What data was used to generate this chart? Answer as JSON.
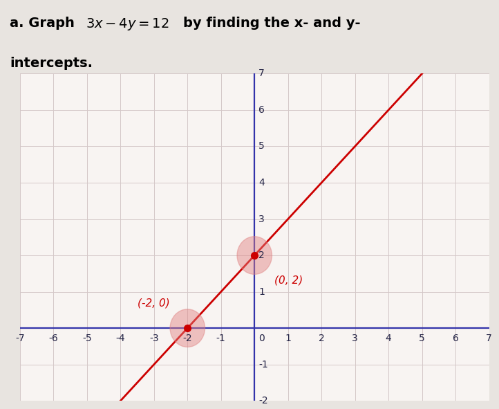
{
  "xlim": [
    -7,
    7
  ],
  "ylim": [
    -2,
    7
  ],
  "xticks": [
    -7,
    -6,
    -5,
    -4,
    -3,
    -2,
    -1,
    0,
    1,
    2,
    3,
    4,
    5,
    6,
    7
  ],
  "yticks": [
    -2,
    -1,
    1,
    2,
    3,
    4,
    5,
    6,
    7
  ],
  "point1": [
    -2,
    0
  ],
  "point2": [
    0,
    2
  ],
  "label1": "(-2, 0)",
  "label2": "(0, 2)",
  "line_color": "#cc0000",
  "point_color": "#cc0000",
  "halo_color": "#e08080",
  "grid_color": "#d4c8c8",
  "axis_color": "#3333aa",
  "background_color": "#f8f4f2",
  "outer_bg": "#e8e4e0",
  "line_x_start": -4.5,
  "line_x_end": 7.0,
  "slope": 1,
  "intercept": 2,
  "font_size_title": 14,
  "font_size_labels": 11,
  "font_size_ticks": 10
}
